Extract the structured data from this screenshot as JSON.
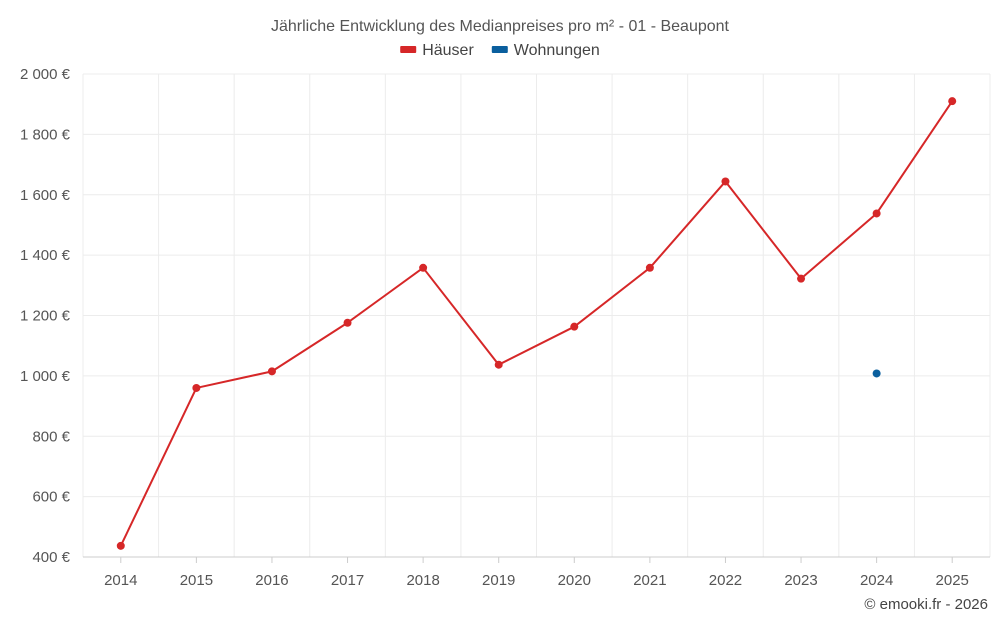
{
  "chart_data": {
    "type": "line",
    "title": "Jährliche Entwicklung des Medianpreises pro m² - 01 - Beaupont",
    "xlabel": "",
    "ylabel": "",
    "categories": [
      "2014",
      "2015",
      "2016",
      "2017",
      "2018",
      "2019",
      "2020",
      "2021",
      "2022",
      "2023",
      "2024",
      "2025"
    ],
    "ylim": [
      400,
      2000
    ],
    "yticks": [
      400,
      600,
      800,
      1000,
      1200,
      1400,
      1600,
      1800,
      2000
    ],
    "ytick_labels": [
      "400 €",
      "600 €",
      "800 €",
      "1 000 €",
      "1 200 €",
      "1 400 €",
      "1 600 €",
      "1 800 €",
      "2 000 €"
    ],
    "grid": true,
    "legend_position": "top-center",
    "series": [
      {
        "name": "Häuser",
        "color": "#d62728",
        "values": [
          437,
          960,
          1015,
          1176,
          1358,
          1037,
          1163,
          1358,
          1644,
          1322,
          1538,
          1910
        ]
      },
      {
        "name": "Wohnungen",
        "color": "#0a5f9e",
        "values": [
          null,
          null,
          null,
          null,
          null,
          null,
          null,
          null,
          null,
          null,
          1008,
          null
        ]
      }
    ]
  },
  "credit": "© emooki.fr - 2026"
}
